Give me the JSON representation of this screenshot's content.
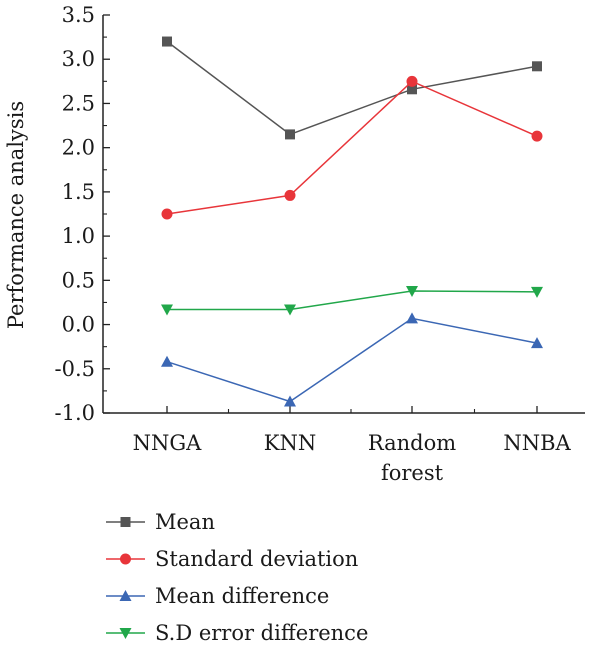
{
  "chart_data": {
    "type": "line",
    "categories": [
      [
        "NNGA"
      ],
      [
        "KNN"
      ],
      [
        "Random",
        "forest"
      ],
      [
        "NNBA"
      ]
    ],
    "ylabel": "Performance analysis",
    "xlabel": "",
    "ylim": [
      -1.0,
      3.5
    ],
    "yticks": [
      "-1.0",
      "-0.5",
      "0.0",
      "0.5",
      "1.0",
      "1.5",
      "2.0",
      "2.5",
      "3.0",
      "3.5"
    ],
    "grid": false,
    "legend_position": "bottom-left",
    "series": [
      {
        "name": "Mean",
        "values": [
          3.2,
          2.15,
          2.66,
          2.92
        ],
        "color": "#555555",
        "marker": "square"
      },
      {
        "name": "Standard deviation",
        "values": [
          1.25,
          1.46,
          2.75,
          2.13
        ],
        "color": "#e8353a",
        "marker": "circle"
      },
      {
        "name": "Mean difference",
        "values": [
          -0.42,
          -0.87,
          0.07,
          -0.21
        ],
        "color": "#3b67b4",
        "marker": "triangle-up"
      },
      {
        "name": "S.D error difference",
        "values": [
          0.17,
          0.17,
          0.38,
          0.37
        ],
        "color": "#21a74a",
        "marker": "triangle-down"
      }
    ]
  }
}
